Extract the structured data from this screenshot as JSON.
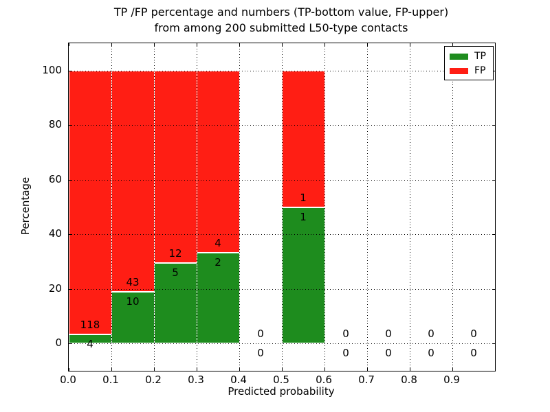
{
  "figure": {
    "title_line1": "TP /FP percentage and numbers (TP-bottom value, FP-upper)",
    "title_line2": "from among 200 submitted L50-type contacts"
  },
  "chart_data": {
    "type": "bar",
    "stacked": true,
    "title": "TP /FP percentage and numbers (TP-bottom value, FP-upper)\nfrom among 200 submitted L50-type contacts",
    "xlabel": "Predicted probability",
    "ylabel": "Percentage",
    "xlim": [
      0.0,
      1.0
    ],
    "ylim": [
      -10,
      110
    ],
    "grid": true,
    "x_ticks": [
      0.0,
      0.1,
      0.2,
      0.3,
      0.4,
      0.5,
      0.6,
      0.7,
      0.8,
      0.9
    ],
    "x_tick_labels": [
      "0.0",
      "0.1",
      "0.2",
      "0.3",
      "0.4",
      "0.5",
      "0.6",
      "0.7",
      "0.8",
      "0.9"
    ],
    "y_ticks": [
      0,
      20,
      40,
      60,
      80,
      100
    ],
    "y_tick_labels": [
      "0",
      "20",
      "40",
      "60",
      "80",
      "100"
    ],
    "bin_width": 0.1,
    "categories": [
      "0.0-0.1",
      "0.1-0.2",
      "0.2-0.3",
      "0.3-0.4",
      "0.4-0.5",
      "0.5-0.6",
      "0.6-0.7",
      "0.7-0.8",
      "0.8-0.9",
      "0.9-1.0"
    ],
    "series": [
      {
        "name": "TP",
        "color": "#1e8c1e",
        "values": [
          4,
          10,
          5,
          2,
          0,
          1,
          0,
          0,
          0,
          0
        ]
      },
      {
        "name": "FP",
        "color": "#ff1e14",
        "values": [
          118,
          43,
          12,
          4,
          0,
          1,
          0,
          0,
          0,
          0
        ]
      }
    ],
    "bar_edge_color": "#ffffff",
    "annotation_rule": "TP count below TP/FP boundary, FP count above boundary",
    "legend": {
      "position": "upper right",
      "entries": [
        {
          "label": "TP",
          "color": "#1e8c1e"
        },
        {
          "label": "FP",
          "color": "#ff1e14"
        }
      ]
    }
  }
}
